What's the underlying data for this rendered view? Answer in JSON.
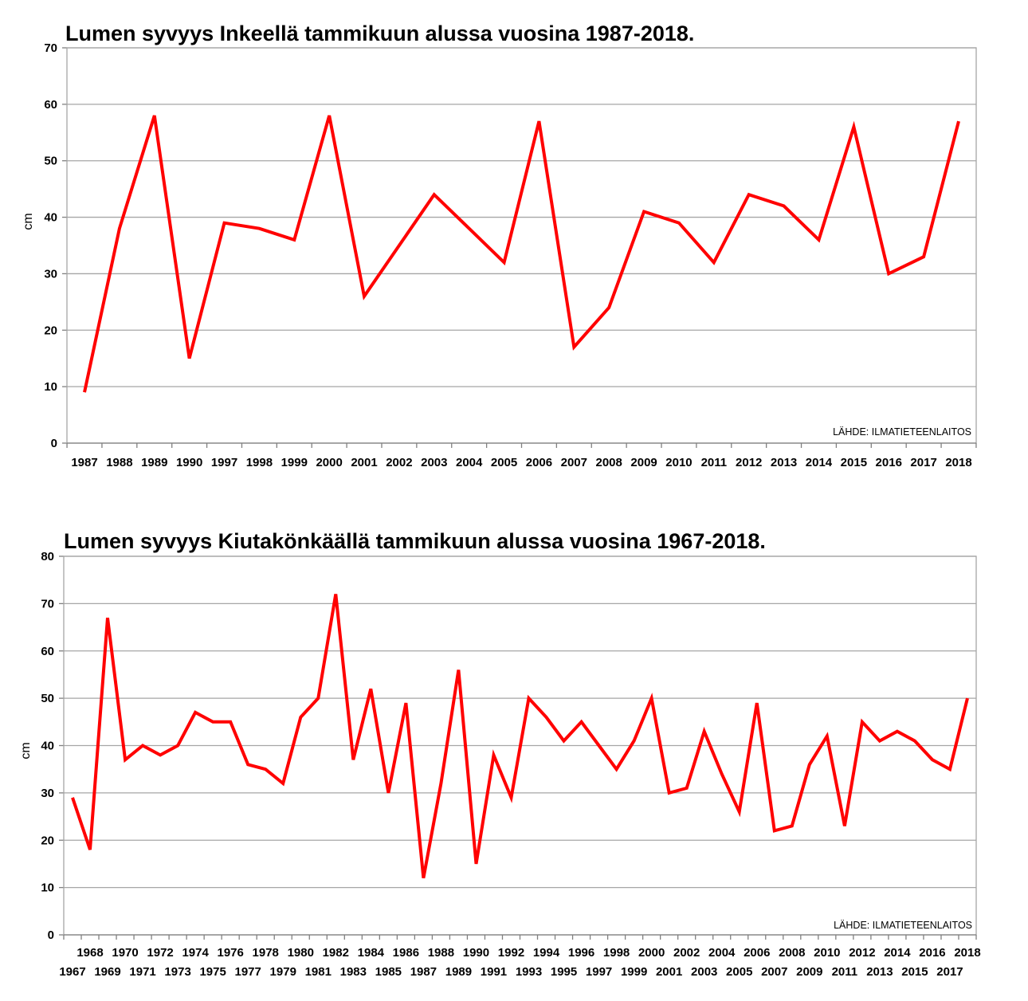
{
  "chart_data": [
    {
      "type": "line",
      "title": "Lumen syvyys Inkeellä tammikuun alussa vuosina 1987-2018.",
      "ylabel": "cm",
      "xlabel": "",
      "source": "LÄHDE: ILMATIETEENLAITOS",
      "ylim": [
        0,
        70
      ],
      "yticks": [
        0,
        10,
        20,
        30,
        40,
        50,
        60,
        70
      ],
      "grid": true,
      "line_color": "#ff0000",
      "categories": [
        "1987",
        "1988",
        "1989",
        "1990",
        "1997",
        "1998",
        "1999",
        "2000",
        "2001",
        "2002",
        "2003",
        "2004",
        "2005",
        "2006",
        "2007",
        "2008",
        "2009",
        "2010",
        "2011",
        "2012",
        "2013",
        "2014",
        "2015",
        "2016",
        "2017",
        "2018"
      ],
      "series": [
        {
          "values": [
            9,
            38,
            58,
            15,
            39,
            38,
            36,
            58,
            26,
            35,
            44,
            38,
            32,
            57,
            17,
            24,
            41,
            39,
            32,
            44,
            42,
            36,
            56,
            30,
            33,
            57
          ]
        }
      ]
    },
    {
      "type": "line",
      "title": "Lumen syvyys Kiutakönkäällä tammikuun alussa vuosina 1967-2018.",
      "ylabel": "cm",
      "xlabel": "",
      "source": "LÄHDE: ILMATIETEENLAITOS",
      "ylim": [
        0,
        80
      ],
      "yticks": [
        0,
        10,
        20,
        30,
        40,
        50,
        60,
        70,
        80
      ],
      "grid": true,
      "line_color": "#ff0000",
      "categories": [
        "1967",
        "1968",
        "1969",
        "1970",
        "1971",
        "1972",
        "1973",
        "1974",
        "1975",
        "1976",
        "1977",
        "1978",
        "1979",
        "1980",
        "1981",
        "1982",
        "1983",
        "1984",
        "1985",
        "1986",
        "1987",
        "1988",
        "1989",
        "1990",
        "1991",
        "1992",
        "1993",
        "1994",
        "1995",
        "1996",
        "1997",
        "1998",
        "1999",
        "2000",
        "2001",
        "2002",
        "2003",
        "2004",
        "2005",
        "2006",
        "2007",
        "2008",
        "2009",
        "2010",
        "2011",
        "2012",
        "2013",
        "2014",
        "2015",
        "2016",
        "2017",
        "2018"
      ],
      "series": [
        {
          "values": [
            29,
            18,
            67,
            37,
            40,
            38,
            40,
            47,
            45,
            45,
            36,
            35,
            32,
            46,
            50,
            72,
            37,
            52,
            30,
            49,
            12,
            32,
            56,
            15,
            38,
            29,
            50,
            46,
            41,
            45,
            40,
            35,
            41,
            50,
            30,
            31,
            43,
            34,
            26,
            49,
            22,
            23,
            36,
            42,
            23,
            45,
            41,
            43,
            41,
            37,
            35,
            50
          ]
        }
      ]
    }
  ]
}
